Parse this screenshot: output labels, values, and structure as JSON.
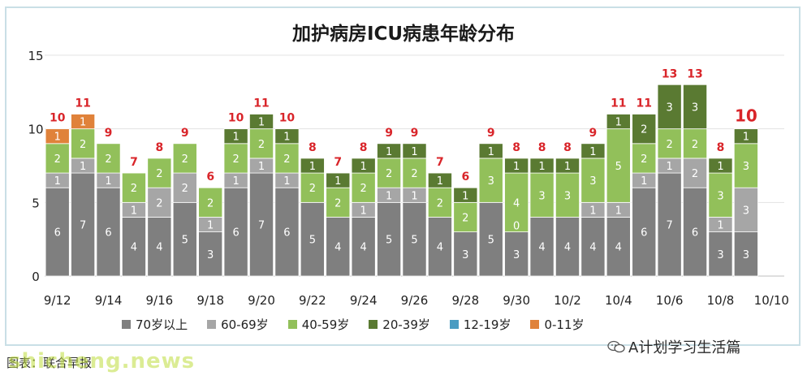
{
  "chart_data": {
    "type": "bar",
    "stacked": true,
    "title": "加护病房ICU病患年龄分布",
    "categories": [
      "9/12",
      "9/13",
      "9/14",
      "9/15",
      "9/16",
      "9/17",
      "9/18",
      "9/19",
      "9/20",
      "9/21",
      "9/22",
      "9/23",
      "9/24",
      "9/25",
      "9/26",
      "9/27",
      "9/28",
      "9/29",
      "9/30",
      "10/1",
      "10/2",
      "10/3",
      "10/4",
      "10/5",
      "10/6",
      "10/7",
      "10/8",
      "10/9",
      "10/10"
    ],
    "x_tick_labels": [
      "9/12",
      "9/14",
      "9/16",
      "9/18",
      "9/20",
      "9/22",
      "9/24",
      "9/26",
      "9/28",
      "9/30",
      "10/2",
      "10/4",
      "10/6",
      "10/8",
      "10/10"
    ],
    "ylim": [
      0,
      15
    ],
    "yticks": [
      0,
      5,
      10,
      15
    ],
    "grid": true,
    "legend_position": "bottom",
    "series": [
      {
        "name": "70岁以上",
        "color": "#7f7f7f",
        "values": [
          6,
          7,
          6,
          4,
          4,
          5,
          3,
          6,
          7,
          6,
          5,
          4,
          4,
          5,
          5,
          4,
          3,
          5,
          3,
          4,
          4,
          4,
          4,
          6,
          7,
          6,
          3,
          3,
          null
        ]
      },
      {
        "name": "60-69岁",
        "color": "#a6a6a6",
        "values": [
          1,
          1,
          1,
          1,
          2,
          2,
          1,
          1,
          1,
          1,
          0,
          0,
          1,
          1,
          1,
          0,
          0,
          0,
          0,
          0,
          0,
          1,
          1,
          1,
          1,
          2,
          1,
          3,
          null
        ]
      },
      {
        "name": "40-59岁",
        "color": "#92c05a",
        "values": [
          2,
          2,
          2,
          2,
          2,
          2,
          2,
          2,
          2,
          2,
          2,
          2,
          2,
          2,
          2,
          2,
          2,
          3,
          4,
          3,
          3,
          3,
          5,
          2,
          2,
          2,
          3,
          3,
          null
        ]
      },
      {
        "name": "20-39岁",
        "color": "#5a7a32",
        "values": [
          0,
          0,
          0,
          0,
          0,
          0,
          0,
          1,
          1,
          1,
          1,
          1,
          1,
          1,
          1,
          1,
          1,
          1,
          1,
          1,
          1,
          1,
          1,
          2,
          3,
          3,
          1,
          1,
          null
        ]
      },
      {
        "name": "12-19岁",
        "color": "#4a9cc2",
        "values": [
          0,
          0,
          0,
          0,
          0,
          0,
          0,
          0,
          0,
          0,
          0,
          0,
          0,
          0,
          0,
          0,
          0,
          0,
          0,
          0,
          0,
          0,
          0,
          0,
          0,
          0,
          0,
          0,
          null
        ]
      },
      {
        "name": "0-11岁",
        "color": "#e0823a",
        "values": [
          1,
          1,
          0,
          0,
          0,
          0,
          0,
          0,
          0,
          0,
          0,
          0,
          0,
          0,
          0,
          0,
          0,
          0,
          0,
          0,
          0,
          0,
          0,
          0,
          0,
          0,
          0,
          0,
          null
        ]
      }
    ],
    "segment_labels": [
      [
        6,
        1,
        2,
        1
      ],
      [
        7,
        1,
        2,
        1
      ],
      [
        6,
        1,
        2
      ],
      [
        4,
        1,
        2
      ],
      [
        4,
        2,
        2
      ],
      [
        5,
        2,
        2
      ],
      [
        3,
        1,
        2
      ],
      [
        6,
        1,
        2,
        1
      ],
      [
        7,
        1,
        2,
        1
      ],
      [
        6,
        1,
        2,
        1
      ],
      [
        5,
        2,
        1
      ],
      [
        4,
        2,
        1
      ],
      [
        4,
        1,
        2,
        1
      ],
      [
        5,
        1,
        2,
        1
      ],
      [
        5,
        1,
        2,
        1
      ],
      [
        4,
        2,
        1
      ],
      [
        3,
        2,
        1
      ],
      [
        5,
        3,
        1
      ],
      [
        3,
        0,
        4,
        1
      ],
      [
        4,
        3,
        1
      ],
      [
        4,
        3,
        1
      ],
      [
        4,
        1,
        3,
        1
      ],
      [
        4,
        1,
        5,
        1
      ],
      [
        6,
        1,
        2,
        2
      ],
      [
        7,
        1,
        2,
        3
      ],
      [
        6,
        2,
        2,
        3
      ],
      [
        3,
        1,
        3,
        1
      ],
      [
        3,
        3,
        3,
        1
      ],
      []
    ],
    "totals": [
      10,
      11,
      9,
      7,
      8,
      9,
      6,
      10,
      11,
      10,
      8,
      7,
      8,
      9,
      9,
      7,
      6,
      9,
      8,
      8,
      8,
      9,
      11,
      11,
      13,
      13,
      8,
      10,
      null
    ],
    "total_color": "#d9252a"
  },
  "legend": {
    "items": [
      {
        "label": "70岁以上",
        "color": "#7f7f7f"
      },
      {
        "label": "60-69岁",
        "color": "#a6a6a6"
      },
      {
        "label": "40-59岁",
        "color": "#92c05a"
      },
      {
        "label": "20-39岁",
        "color": "#5a7a32"
      },
      {
        "label": "12-19岁",
        "color": "#4a9cc2"
      },
      {
        "label": "0-11岁",
        "color": "#e0823a"
      }
    ]
  },
  "watermark": {
    "account": "A计划学习生活篇",
    "site": "shicheng.news",
    "caption": "图表：联合早报"
  }
}
